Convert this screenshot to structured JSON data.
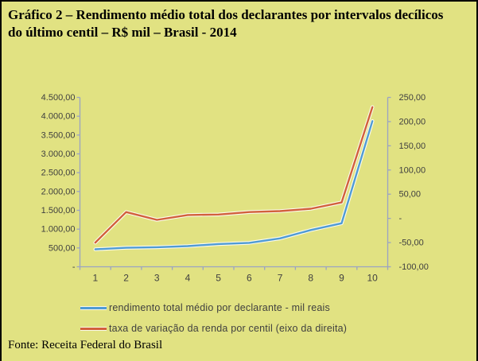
{
  "page": {
    "title_line1": "Gráfico 2 – Rendimento médio total dos declarantes por intervalos decílicos",
    "title_line2": "do último centil – R$ mil – Brasil - 2014",
    "source": "Fonte: Receita Federal do Brasil"
  },
  "colors": {
    "background": "#e1e282",
    "border": "#000000",
    "axis": "#9aa3c2",
    "tick_text": "#3f3f3f",
    "halo": "#ffffff"
  },
  "chart_data": {
    "type": "line",
    "title": "Rendimento médio total dos declarantes por intervalos decílicos do último centil - R$ mil - Brasil - 2014",
    "categories": [
      "1",
      "2",
      "3",
      "4",
      "5",
      "6",
      "7",
      "8",
      "9",
      "10"
    ],
    "series": [
      {
        "name": "rendimento total médio por declarante - mil reais",
        "axis": "left",
        "color": "#4f9bd5",
        "values": [
          465,
          505,
          520,
          550,
          605,
          635,
          755,
          975,
          1155,
          3870
        ]
      },
      {
        "name": "taxa de variação da renda por centil (eixo da direita)",
        "axis": "right",
        "color": "#d2603c",
        "values": [
          -50,
          13,
          -3,
          7,
          8,
          13,
          15,
          20,
          33,
          230
        ]
      }
    ],
    "left_axis": {
      "min": 0,
      "max": 4500,
      "step": 500,
      "tick_labels": [
        "4.500,00",
        "4.000,00",
        "3.500,00",
        "3.000,00",
        "2.500,00",
        "2.000,00",
        "1.500,00",
        "1.000,00",
        "500,00",
        "-"
      ]
    },
    "right_axis": {
      "min": -100,
      "max": 250,
      "step": 50,
      "tick_labels": [
        "250,00",
        "200,00",
        "150,00",
        "100,00",
        "50,00",
        "-",
        "-50,00",
        "-100,00"
      ]
    },
    "grid": false,
    "legend_position": "bottom-left",
    "xlabel": "",
    "ylabel": ""
  }
}
